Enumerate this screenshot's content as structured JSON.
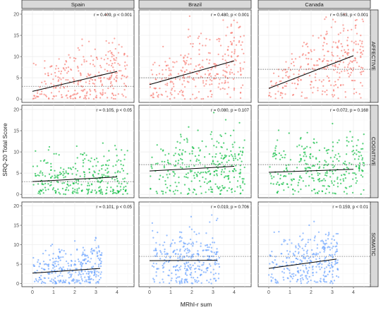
{
  "chart_data": {
    "type": "scatter",
    "xlabel": "MRhI-r sum",
    "ylabel": "SRQ-20 Total Score",
    "xlim": [
      -0.5,
      4.8
    ],
    "ylim": [
      -0.8,
      21
    ],
    "x_ticks": [
      "0",
      "1",
      "2",
      "3",
      "4"
    ],
    "y_ticks": [
      "0",
      "5",
      "10",
      "15",
      "20"
    ],
    "columns": [
      "Spain",
      "Brazil",
      "Canada"
    ],
    "rows": [
      {
        "label": "AFFECTIVE",
        "color": "#f8766d"
      },
      {
        "label": "COGNITIVE",
        "color": "#00ba38"
      },
      {
        "label": "SOMATIC",
        "color": "#619cff"
      }
    ],
    "panels": [
      {
        "row": 0,
        "col": 0,
        "annotation": "r = 0.409, p < 0.001",
        "fit": {
          "x": [
            0,
            4
          ],
          "y": [
            1.8,
            6.5
          ]
        },
        "reference_y": 3,
        "x_range": [
          0,
          4.5
        ]
      },
      {
        "row": 0,
        "col": 1,
        "annotation": "r = 0.480, p < 0.001",
        "fit": {
          "x": [
            0,
            4
          ],
          "y": [
            3.4,
            9.0
          ]
        },
        "reference_y": 5,
        "x_range": [
          0,
          4.5
        ]
      },
      {
        "row": 0,
        "col": 2,
        "annotation": "r = 0.563, p < 0.001",
        "fit": {
          "x": [
            0,
            4
          ],
          "y": [
            2.5,
            10.2
          ]
        },
        "reference_y": 7,
        "x_range": [
          0,
          4.5
        ]
      },
      {
        "row": 1,
        "col": 0,
        "annotation": "r = 0.105, p < 0.05",
        "fit": {
          "x": [
            0,
            4
          ],
          "y": [
            3.0,
            4.1
          ]
        },
        "reference_y": 3,
        "x_range": [
          0,
          4.5
        ]
      },
      {
        "row": 1,
        "col": 1,
        "annotation": "r = 0.080, p = 0.107",
        "fit": {
          "x": [
            0,
            4
          ],
          "y": [
            5.5,
            6.6
          ]
        },
        "reference_y": 7,
        "x_range": [
          0,
          4.5
        ]
      },
      {
        "row": 1,
        "col": 2,
        "annotation": "r = 0.072, p = 0.168",
        "fit": {
          "x": [
            0,
            4
          ],
          "y": [
            5.2,
            5.9
          ]
        },
        "reference_y": 7,
        "x_range": [
          0,
          4.5
        ]
      },
      {
        "row": 2,
        "col": 0,
        "annotation": "r = 0.101, p < 0.05",
        "fit": {
          "x": [
            0,
            3.2
          ],
          "y": [
            2.7,
            3.9
          ]
        },
        "reference_y": null,
        "x_range": [
          0,
          3.3
        ]
      },
      {
        "row": 2,
        "col": 1,
        "annotation": "r = 0.019, p = 0.706",
        "fit": {
          "x": [
            0,
            3.2
          ],
          "y": [
            5.9,
            6.0
          ]
        },
        "reference_y": 7,
        "x_range": [
          0,
          3.3
        ]
      },
      {
        "row": 2,
        "col": 2,
        "annotation": "r = 0.159, p < 0.01",
        "fit": {
          "x": [
            0,
            3.2
          ],
          "y": [
            3.9,
            6.3
          ]
        },
        "reference_y": 7,
        "x_range": [
          0,
          3.3
        ]
      }
    ]
  }
}
